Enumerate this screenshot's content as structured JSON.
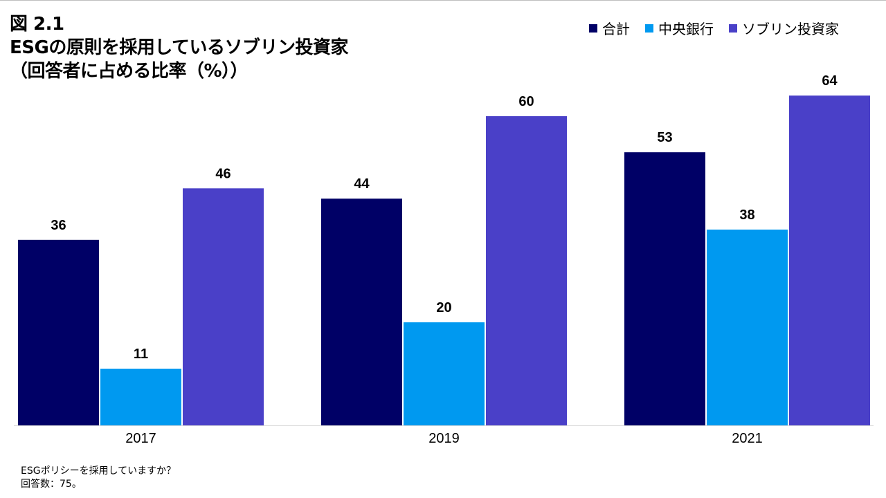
{
  "figure": {
    "title_lines": [
      "図 2.1",
      "ESGの原則を採用しているソブリン投資家",
      "（回答者に占める比率（%））"
    ]
  },
  "footnotes": [
    "ESGポリシーを採用していますか？",
    "回答数：75。"
  ],
  "chart_data": {
    "type": "bar",
    "categories": [
      "2017",
      "2019",
      "2021"
    ],
    "series": [
      {
        "name": "合計",
        "color": "#000066",
        "values": [
          36,
          44,
          53
        ]
      },
      {
        "name": "中央銀行",
        "color": "#0099f0",
        "values": [
          11,
          20,
          38
        ]
      },
      {
        "name": "ソブリン投資家",
        "color": "#4a40c8",
        "values": [
          46,
          60,
          64
        ]
      }
    ],
    "title": "ESGの原則を採用しているソブリン投資家",
    "xlabel": "",
    "ylabel": "",
    "ylim": [
      0,
      64
    ],
    "grid": false,
    "legend_position": "top-right",
    "data_labels": true
  }
}
